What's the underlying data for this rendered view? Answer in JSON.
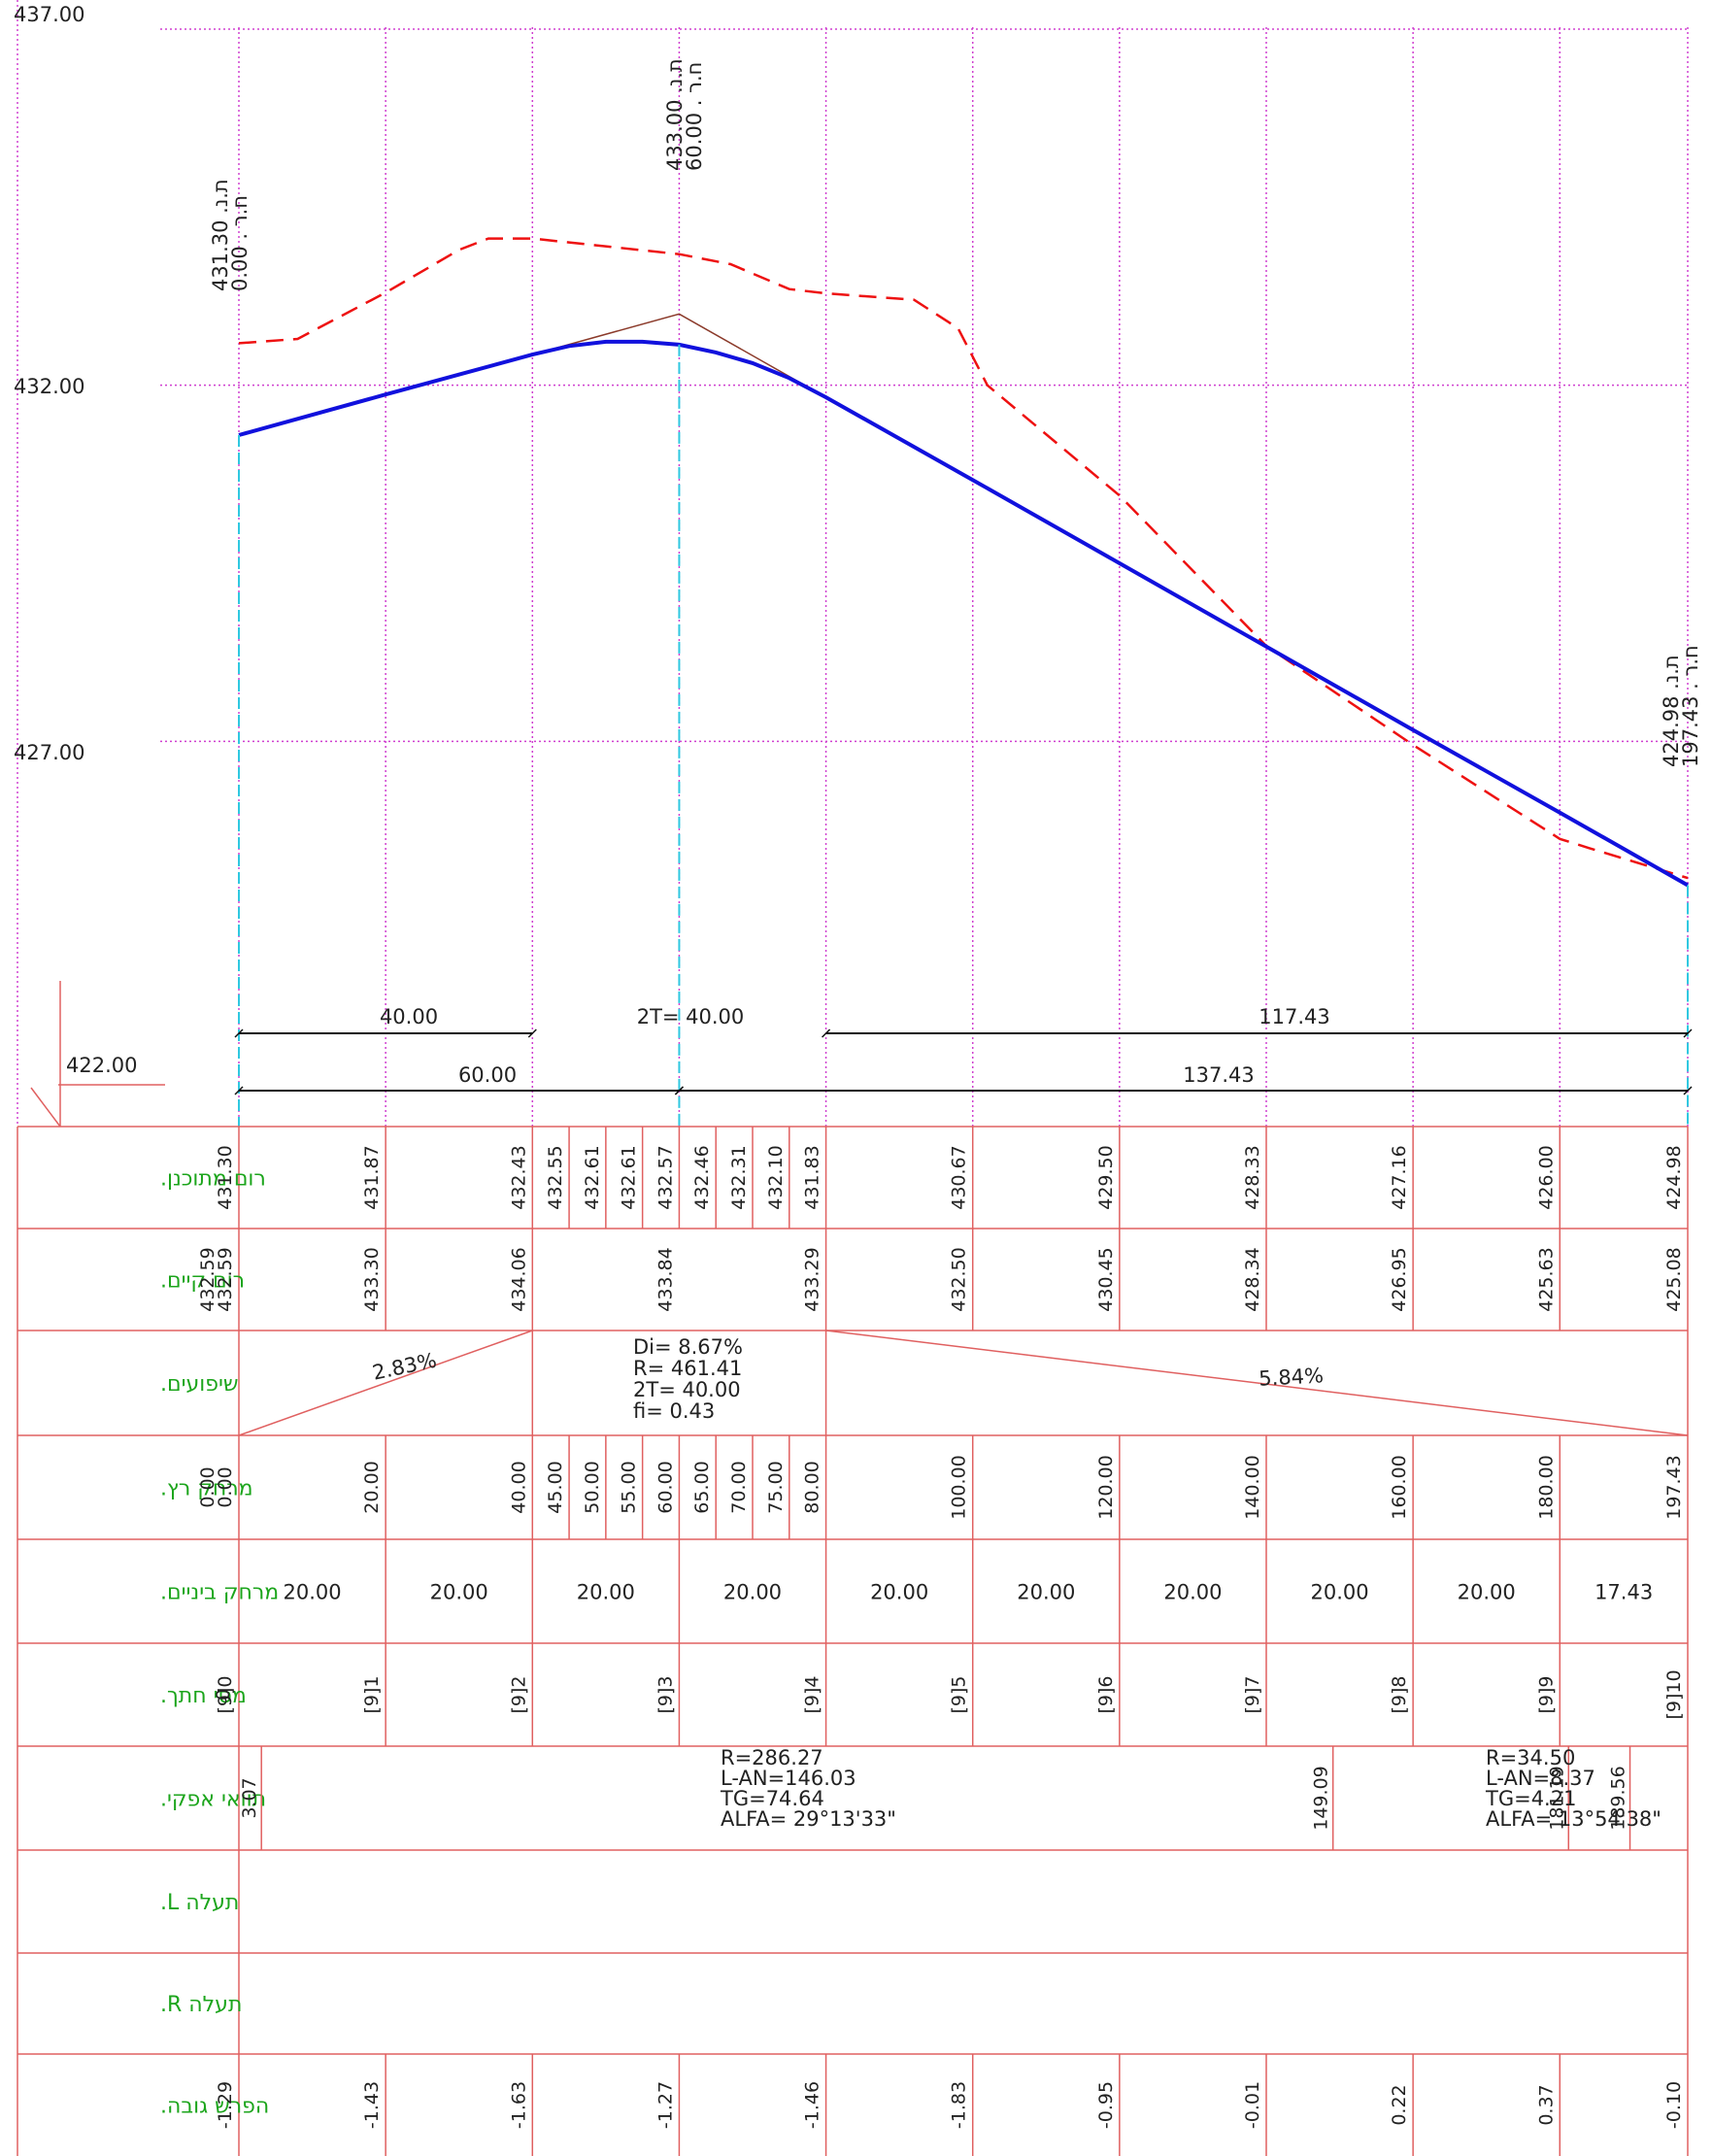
{
  "profile": {
    "y_axis_labels": [
      "437.00",
      "432.00",
      "427.00",
      "422.00"
    ],
    "ylim": [
      422,
      437
    ],
    "xlim": [
      0,
      197.43
    ],
    "gridline_stations": [
      0,
      20,
      40,
      60,
      80,
      100,
      120,
      140,
      160,
      180,
      197.43
    ],
    "design_line": {
      "color": "#1111dd",
      "points": [
        [
          0,
          431.3
        ],
        [
          20,
          431.87
        ],
        [
          40,
          432.43
        ],
        [
          45,
          432.55
        ],
        [
          50,
          432.61
        ],
        [
          55,
          432.61
        ],
        [
          60,
          432.57
        ],
        [
          65,
          432.46
        ],
        [
          70,
          432.31
        ],
        [
          75,
          432.1
        ],
        [
          80,
          431.83
        ],
        [
          100,
          430.67
        ],
        [
          120,
          429.5
        ],
        [
          140,
          428.33
        ],
        [
          160,
          427.16
        ],
        [
          180,
          426.0
        ],
        [
          197.43,
          424.98
        ]
      ]
    },
    "existing_ground": {
      "color": "#ee1111",
      "points": [
        [
          0,
          432.59
        ],
        [
          8,
          432.65
        ],
        [
          20,
          433.3
        ],
        [
          30,
          433.9
        ],
        [
          34,
          434.06
        ],
        [
          40,
          434.06
        ],
        [
          60,
          433.84
        ],
        [
          67,
          433.7
        ],
        [
          75,
          433.35
        ],
        [
          80,
          433.29
        ],
        [
          92,
          433.2
        ],
        [
          98,
          432.8
        ],
        [
          102,
          432.0
        ],
        [
          120,
          430.45
        ],
        [
          140,
          428.34
        ],
        [
          160,
          426.95
        ],
        [
          180,
          425.63
        ],
        [
          184,
          425.5
        ],
        [
          197.43,
          425.08
        ]
      ]
    },
    "tangent_line": {
      "color": "#8b3a2a",
      "points": [
        [
          40,
          432.43
        ],
        [
          60,
          433.0
        ],
        [
          80,
          431.83
        ]
      ]
    },
    "markers": [
      {
        "id": "start",
        "line1": "431.30 .ת.נ",
        "line2": "0.00 . ח.ר"
      },
      {
        "id": "pvi",
        "line1": "433.00 .ת.נ",
        "line2": "60.00 . ח.ר"
      },
      {
        "id": "end",
        "line1": "424.98 .ת.נ",
        "line2": "197.43 . ח.ר"
      }
    ],
    "dimensions": {
      "row1": [
        "40.00",
        "2T= 40.00",
        "117.43"
      ],
      "row2": [
        "60.00",
        "137.43"
      ]
    }
  },
  "table": {
    "row_labels": [
      "רום מתוכנן.",
      "רום קיים.",
      "שיפועים.",
      "מרחק רץ.",
      "מרחק ביניים.",
      "מסי חתך.",
      "תוואי אפקי.",
      "תעלה L.",
      "תעלה R.",
      "הפרש גובה."
    ],
    "design_elevations": [
      {
        "st": 0,
        "v": "431.30"
      },
      {
        "st": 20,
        "v": "431.87"
      },
      {
        "st": 40,
        "v": "432.43"
      },
      {
        "st": 45,
        "v": "432.55"
      },
      {
        "st": 50,
        "v": "432.61"
      },
      {
        "st": 55,
        "v": "432.61"
      },
      {
        "st": 60,
        "v": "432.57"
      },
      {
        "st": 65,
        "v": "432.46"
      },
      {
        "st": 70,
        "v": "432.31"
      },
      {
        "st": 75,
        "v": "432.10"
      },
      {
        "st": 80,
        "v": "431.83"
      },
      {
        "st": 100,
        "v": "430.67"
      },
      {
        "st": 120,
        "v": "429.50"
      },
      {
        "st": 140,
        "v": "428.33"
      },
      {
        "st": 160,
        "v": "427.16"
      },
      {
        "st": 180,
        "v": "426.00"
      },
      {
        "st": 197.43,
        "v": "424.98"
      }
    ],
    "existing_elevations": [
      {
        "st": 0,
        "v": "432.59",
        "dup": true
      },
      {
        "st": 20,
        "v": "433.30"
      },
      {
        "st": 40,
        "v": "434.06"
      },
      {
        "st": 60,
        "v": "433.84"
      },
      {
        "st": 80,
        "v": "433.29"
      },
      {
        "st": 100,
        "v": "432.50"
      },
      {
        "st": 120,
        "v": "430.45"
      },
      {
        "st": 140,
        "v": "428.34"
      },
      {
        "st": 160,
        "v": "426.95"
      },
      {
        "st": 180,
        "v": "425.63"
      },
      {
        "st": 197.43,
        "v": "425.08"
      }
    ],
    "slopes": {
      "left": "2.83%",
      "right": "5.84%",
      "curve": [
        "Di= 8.67%",
        "R= 461.41",
        "2T= 40.00",
        "fi= 0.43"
      ]
    },
    "running_distances": [
      {
        "st": 0,
        "v": "0.00",
        "dup": true
      },
      {
        "st": 20,
        "v": "20.00"
      },
      {
        "st": 40,
        "v": "40.00"
      },
      {
        "st": 45,
        "v": "45.00"
      },
      {
        "st": 50,
        "v": "50.00"
      },
      {
        "st": 55,
        "v": "55.00"
      },
      {
        "st": 60,
        "v": "60.00"
      },
      {
        "st": 65,
        "v": "65.00"
      },
      {
        "st": 70,
        "v": "70.00"
      },
      {
        "st": 75,
        "v": "75.00"
      },
      {
        "st": 80,
        "v": "80.00"
      },
      {
        "st": 100,
        "v": "100.00"
      },
      {
        "st": 120,
        "v": "120.00"
      },
      {
        "st": 140,
        "v": "140.00"
      },
      {
        "st": 160,
        "v": "160.00"
      },
      {
        "st": 180,
        "v": "180.00"
      },
      {
        "st": 197.43,
        "v": "197.43"
      }
    ],
    "intermediate_distances": [
      "20.00",
      "20.00",
      "20.00",
      "20.00",
      "20.00",
      "20.00",
      "20.00",
      "20.00",
      "20.00",
      "17.43"
    ],
    "sections": [
      {
        "st": 0,
        "v": "0"
      },
      {
        "st": 0,
        "v": "[9]0"
      },
      {
        "st": 20,
        "v": "[9]1"
      },
      {
        "st": 40,
        "v": "[9]2"
      },
      {
        "st": 60,
        "v": "[9]3"
      },
      {
        "st": 80,
        "v": "[9]4"
      },
      {
        "st": 100,
        "v": "[9]5"
      },
      {
        "st": 120,
        "v": "[9]6"
      },
      {
        "st": 140,
        "v": "[9]7"
      },
      {
        "st": 160,
        "v": "[9]8"
      },
      {
        "st": 180,
        "v": "[9]9"
      },
      {
        "st": 197.43,
        "v": "[9]10"
      }
    ],
    "horizontal_alignment": {
      "left_station": "3.07",
      "curve1": [
        "R=286.27",
        "L-AN=146.03",
        "TG=74.64",
        "ALFA= 29°13'33\""
      ],
      "mid_station": "149.09",
      "curve2": [
        "R=34.50",
        "L-AN=8.37",
        "TG=4.21",
        "ALFA= 13°54'38\""
      ],
      "end_stations": [
        "181.19",
        "189.56"
      ]
    },
    "height_differences": [
      {
        "st": 0,
        "v": "-1.29"
      },
      {
        "st": 20,
        "v": "-1.43"
      },
      {
        "st": 40,
        "v": "-1.63"
      },
      {
        "st": 60,
        "v": "-1.27"
      },
      {
        "st": 80,
        "v": "-1.46"
      },
      {
        "st": 100,
        "v": "-1.83"
      },
      {
        "st": 120,
        "v": "-0.95"
      },
      {
        "st": 140,
        "v": "-0.01"
      },
      {
        "st": 160,
        "v": "0.22"
      },
      {
        "st": 180,
        "v": "0.37"
      },
      {
        "st": 197.43,
        "v": "-0.10"
      }
    ]
  }
}
